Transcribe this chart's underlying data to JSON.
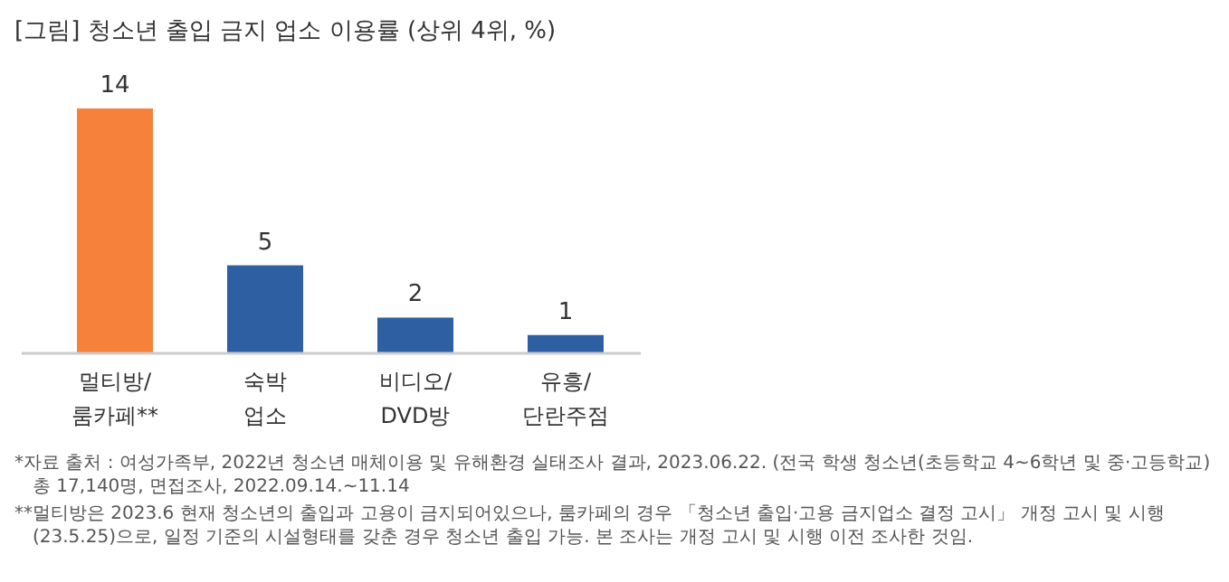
{
  "chart_data": {
    "type": "bar",
    "title": "[그림] 청소년 출입 금지 업소 이용률 (상위 4위, %)",
    "categories": [
      "멀티방/\n룸카페**",
      "숙박\n업소",
      "비디오/\nDVD방",
      "유흥/\n단란주점"
    ],
    "values": [
      14,
      5,
      2,
      1
    ],
    "colors": [
      "#f5813a",
      "#2e5fa3",
      "#2e5fa3",
      "#2e5fa3"
    ],
    "data_labels": true,
    "annotations": [
      "*자료 출처 : 여성가족부, 2022년 청소년 매체이용 및 유해환경 실태조사 결과, 2023.06.22. (전국 학생 청소년(초등학교 4~6학년 및 중·고등학교) 총 17,140명, 면접조사, 2022.09.14.~11.14",
      "**멀티방은 2023.6 현재 청소년의 출입과 고용이 금지되어있으나, 룸카페의 경우 「청소년 출입·고용 금지업소 결정 고시」 개정 고시 및 시행(23.5.25)으로, 일정 기준의 시설형태를 갖춘 경우 청소년 출입 가능. 본 조사는 개정 고시 및 시행 이전 조사한 것임."
    ]
  }
}
